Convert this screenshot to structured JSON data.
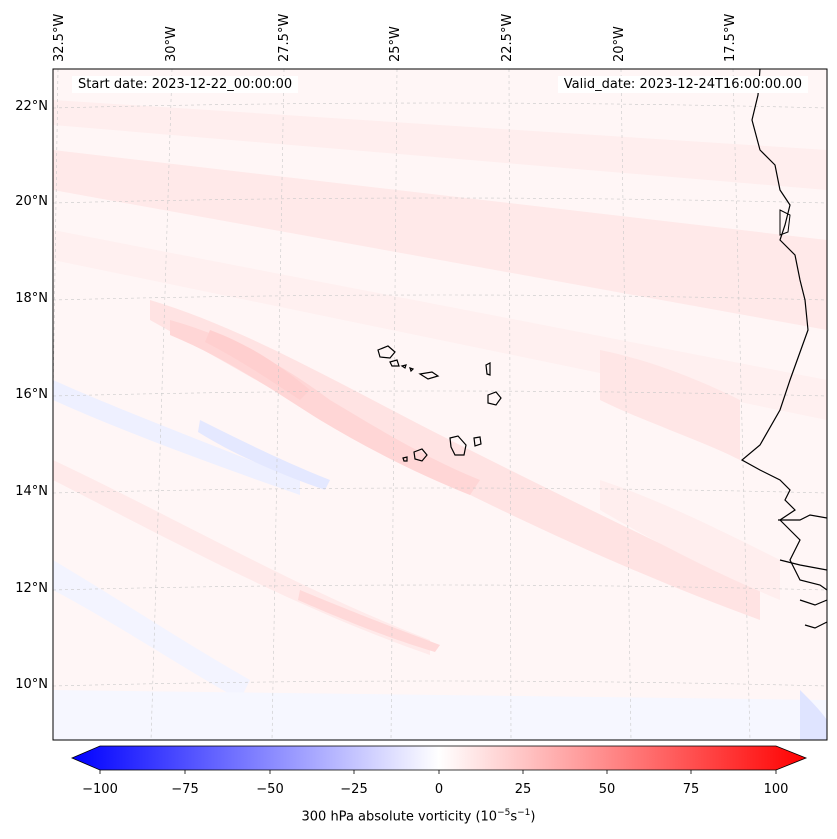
{
  "map": {
    "start_date": "Start date: 2023-12-22_00:00:00",
    "valid_date": "Valid_date: 2023-12-24T16:00:00.00",
    "lon_labels": [
      "32.5°W",
      "30°W",
      "27.5°W",
      "25°W",
      "22.5°W",
      "20°W",
      "17.5°W"
    ],
    "lat_labels": [
      "22°N",
      "20°N",
      "18°N",
      "16°N",
      "14°N",
      "12°N",
      "10°N"
    ],
    "colorbar": {
      "ticks": [
        "−100",
        "−75",
        "−50",
        "−25",
        "0",
        "25",
        "50",
        "75",
        "100"
      ],
      "label_main": "300 hPa absolute vorticity (10",
      "label_exp1": "−5",
      "label_mid": "s",
      "label_exp2": "−1",
      "label_end": ")",
      "min": -100,
      "max": 100
    },
    "colors": {
      "negative": "#0000ff",
      "positive": "#ff0000",
      "coast": "#000000"
    }
  }
}
